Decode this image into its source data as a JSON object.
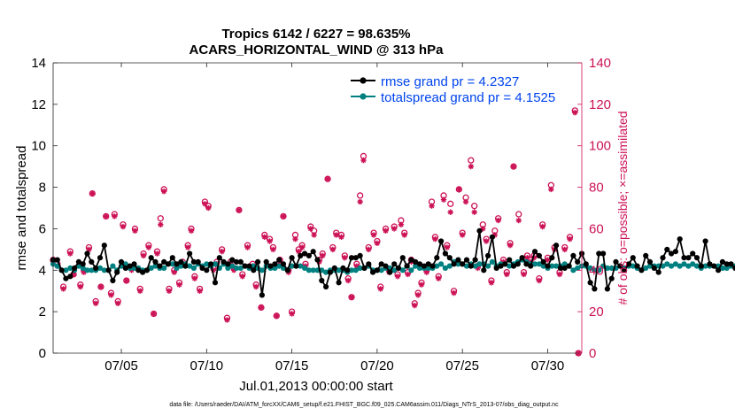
{
  "chart_data": {
    "type": "line",
    "title_line1": "Tropics 6142 / 6227 = 98.635%",
    "title_line2": "ACARS_HORIZONTAL_WIND @ 313 hPa",
    "xlabel": "Jul.01,2013 00:00:00 start",
    "ylabel_left": "rmse and totalspread",
    "ylabel_right": "# of obs: o=possible; ×=assimilated",
    "footnote": "data file: /Users/raeder/DAI/ATM_forcXX/CAM6_setup/f.e21.FHIST_BGC.f09_025.CAM6assim.011/Diags_NTrS_2013-07/obs_diag_output.nc",
    "xlim": [
      1.0,
      32.0
    ],
    "ylim_left": [
      0,
      14
    ],
    "ylim_right": [
      0,
      140
    ],
    "x_ticks": [
      5,
      10,
      15,
      20,
      25,
      30
    ],
    "x_tick_labels": [
      "07/05",
      "07/10",
      "07/15",
      "07/20",
      "07/25",
      "07/30"
    ],
    "y_ticks_left": [
      0,
      2,
      4,
      6,
      8,
      10,
      12,
      14
    ],
    "y_ticks_right": [
      0,
      20,
      40,
      60,
      80,
      100,
      120,
      140
    ],
    "legend": [
      {
        "label": "rmse grand pr = 4.2327"
      },
      {
        "label": "totalspread grand pr = 4.1525"
      }
    ],
    "colors": {
      "rmse": "#000000",
      "spread": "#008080",
      "obs": "#cc1155",
      "legend_text": "#0044ee"
    },
    "x_start": 1.0,
    "x_step": 0.25,
    "series": [
      {
        "name": "rmse",
        "values": [
          4.5,
          4.5,
          4.0,
          3.6,
          3.7,
          4.1,
          4.4,
          4.3,
          4.8,
          4.4,
          4.1,
          4.6,
          5.2,
          4.0,
          3.5,
          3.9,
          4.4,
          4.1,
          4.2,
          4.3,
          4.0,
          3.9,
          4.0,
          4.6,
          4.4,
          4.2,
          4.4,
          4.3,
          4.6,
          4.3,
          4.4,
          4.2,
          4.8,
          4.4,
          4.4,
          4.1,
          4.0,
          4.3,
          3.4,
          4.6,
          4.4,
          4.3,
          4.5,
          4.4,
          4.4,
          4.2,
          4.2,
          4.0,
          4.4,
          2.8,
          4.4,
          4.2,
          4.3,
          4.5,
          4.3,
          4.0,
          4.6,
          4.2,
          4.7,
          4.8,
          4.7,
          4.9,
          4.5,
          3.5,
          3.2,
          3.9,
          4.1,
          3.4,
          4.1,
          4.0,
          4.6,
          4.6,
          4.7,
          4.1,
          4.3,
          3.9,
          4.0,
          4.3,
          4.2,
          3.9,
          4.3,
          4.1,
          4.6,
          4.2,
          4.5,
          4.4,
          4.3,
          4.2,
          4.3,
          4.2,
          4.6,
          5.4,
          4.8,
          4.6,
          4.3,
          4.5,
          4.3,
          4.5,
          4.2,
          4.5,
          5.9,
          4.0,
          4.7,
          5.6,
          4.1,
          4.2,
          4.3,
          4.5,
          4.2,
          4.3,
          4.6,
          4.3,
          4.2,
          4.9,
          4.7,
          4.4,
          4.2,
          4.6,
          5.2,
          4.1,
          4.1,
          4.2,
          4.7,
          4.4,
          4.8,
          4.3,
          3.4,
          3.1,
          4.8,
          4.8,
          3.1,
          3.6,
          4.4,
          4.2,
          4.0,
          4.3,
          4.6,
          4.2,
          4.0,
          4.7,
          4.4,
          4.1,
          3.9,
          4.6,
          5.0,
          4.8,
          4.9,
          5.5,
          4.6,
          4.6,
          4.8,
          4.6,
          4.2,
          5.4,
          4.3,
          4.2,
          4.0,
          4.4,
          4.3,
          4.3,
          4.1,
          3.9,
          4.5,
          4.2,
          4.0,
          4.4,
          4.5,
          3.4,
          3.3,
          3.3,
          3.9,
          4.6,
          4.0,
          4.0,
          4.6,
          4.6,
          4.0,
          4.0,
          4.0,
          4.4,
          4.5,
          4.1,
          4.2,
          4.8,
          4.3,
          3.7,
          4.5,
          4.7,
          3.9
        ]
      },
      {
        "name": "totalspread",
        "values": [
          4.3,
          4.2,
          4.0,
          4.0,
          4.1,
          4.0,
          4.2,
          4.1,
          4.0,
          4.0,
          4.0,
          4.1,
          4.0,
          4.0,
          4.2,
          4.0,
          4.2,
          4.3,
          4.1,
          4.1,
          4.1,
          4.0,
          4.0,
          4.1,
          4.2,
          4.1,
          4.1,
          4.3,
          4.3,
          4.1,
          4.2,
          4.3,
          4.2,
          4.1,
          4.3,
          4.2,
          4.3,
          4.2,
          4.3,
          4.1,
          4.3,
          4.1,
          4.2,
          4.1,
          4.1,
          4.2,
          4.1,
          4.2,
          4.1,
          4.0,
          4.2,
          4.1,
          4.1,
          4.2,
          4.1,
          4.0,
          4.2,
          4.2,
          4.2,
          4.1,
          4.0,
          4.0,
          4.0,
          4.0,
          3.9,
          4.0,
          4.0,
          4.0,
          4.0,
          3.9,
          4.0,
          4.0,
          4.1,
          4.1,
          4.2,
          4.0,
          4.0,
          4.0,
          4.1,
          4.1,
          4.0,
          4.1,
          4.0,
          4.2,
          4.0,
          4.2,
          4.1,
          4.1,
          4.1,
          4.1,
          4.2,
          4.3,
          4.1,
          4.2,
          4.4,
          4.3,
          4.3,
          4.2,
          4.3,
          4.2,
          4.3,
          4.3,
          4.2,
          4.4,
          4.2,
          4.3,
          4.3,
          4.2,
          4.3,
          4.4,
          4.5,
          4.4,
          4.3,
          4.3,
          4.3,
          4.2,
          4.1,
          4.2,
          4.2,
          4.2,
          4.3,
          4.2,
          4.0,
          4.1,
          4.2,
          4.2,
          4.1,
          4.0,
          4.0,
          4.2,
          4.1,
          4.1,
          4.1,
          4.2,
          4.1,
          4.2,
          4.2,
          4.1,
          4.0,
          4.1,
          4.2,
          4.2,
          4.2,
          4.2,
          4.3,
          4.2,
          4.3,
          4.2,
          4.3,
          4.2,
          4.3,
          4.2,
          4.1,
          4.2,
          4.2,
          4.2,
          4.2,
          4.1,
          4.1,
          4.2,
          4.2,
          4.0,
          4.1,
          4.1,
          4.0,
          3.9,
          3.9,
          3.9,
          4.1,
          4.0,
          4.0,
          4.0,
          4.1,
          4.1,
          4.0,
          4.1,
          4.1,
          4.1,
          4.1,
          4.0,
          4.0,
          4.4,
          4.2,
          4.1,
          4.3,
          4.3,
          4.3
        ]
      }
    ],
    "obs_possible": [
      [
        1.0,
        45
      ],
      [
        1.25,
        43
      ],
      [
        1.6,
        32
      ],
      [
        2.0,
        49
      ],
      [
        2.2,
        38
      ],
      [
        2.6,
        33
      ],
      [
        2.8,
        40
      ],
      [
        3.1,
        51
      ],
      [
        3.3,
        77
      ],
      [
        3.5,
        25
      ],
      [
        3.8,
        32
      ],
      [
        4.1,
        66
      ],
      [
        4.4,
        29
      ],
      [
        4.6,
        67
      ],
      [
        4.8,
        25
      ],
      [
        5.1,
        62
      ],
      [
        5.3,
        35
      ],
      [
        5.6,
        41
      ],
      [
        5.8,
        60
      ],
      [
        6.1,
        31
      ],
      [
        6.3,
        48
      ],
      [
        6.6,
        52
      ],
      [
        6.9,
        19
      ],
      [
        7.1,
        49
      ],
      [
        7.3,
        65
      ],
      [
        7.5,
        79
      ],
      [
        7.8,
        31
      ],
      [
        8.1,
        40
      ],
      [
        8.4,
        34
      ],
      [
        8.6,
        44
      ],
      [
        8.9,
        52
      ],
      [
        9.1,
        60
      ],
      [
        9.3,
        37
      ],
      [
        9.6,
        31
      ],
      [
        9.9,
        73
      ],
      [
        10.1,
        71
      ],
      [
        10.4,
        41
      ],
      [
        10.6,
        44
      ],
      [
        10.9,
        50
      ],
      [
        11.2,
        17
      ],
      [
        11.4,
        44
      ],
      [
        11.6,
        41
      ],
      [
        11.9,
        69
      ],
      [
        12.1,
        38
      ],
      [
        12.4,
        52
      ],
      [
        12.7,
        43
      ],
      [
        12.9,
        33
      ],
      [
        13.2,
        22
      ],
      [
        13.4,
        57
      ],
      [
        13.7,
        55
      ],
      [
        13.9,
        51
      ],
      [
        14.1,
        18
      ],
      [
        14.3,
        45
      ],
      [
        14.5,
        66
      ],
      [
        14.8,
        40
      ],
      [
        15.0,
        20
      ],
      [
        15.2,
        57
      ],
      [
        15.4,
        50
      ],
      [
        15.6,
        52
      ],
      [
        15.8,
        43
      ],
      [
        16.1,
        61
      ],
      [
        16.3,
        59
      ],
      [
        16.6,
        45
      ],
      [
        16.8,
        48
      ],
      [
        17.1,
        84
      ],
      [
        17.4,
        51
      ],
      [
        17.6,
        58
      ],
      [
        17.9,
        57
      ],
      [
        18.1,
        47
      ],
      [
        18.3,
        36
      ],
      [
        18.5,
        27
      ],
      [
        18.8,
        43
      ],
      [
        19.0,
        76
      ],
      [
        19.2,
        95
      ],
      [
        19.5,
        51
      ],
      [
        19.8,
        58
      ],
      [
        20.0,
        54
      ],
      [
        20.2,
        32
      ],
      [
        20.5,
        60
      ],
      [
        20.7,
        40
      ],
      [
        21.0,
        61
      ],
      [
        21.2,
        38
      ],
      [
        21.4,
        64
      ],
      [
        21.6,
        58
      ],
      [
        21.8,
        39
      ],
      [
        22.0,
        45
      ],
      [
        22.2,
        24
      ],
      [
        22.4,
        29
      ],
      [
        22.6,
        34
      ],
      [
        22.9,
        40
      ],
      [
        23.2,
        73
      ],
      [
        23.4,
        56
      ],
      [
        23.6,
        37
      ],
      [
        23.9,
        76
      ],
      [
        24.1,
        52
      ],
      [
        24.3,
        72
      ],
      [
        24.5,
        30
      ],
      [
        24.8,
        79
      ],
      [
        25.0,
        58
      ],
      [
        25.2,
        75
      ],
      [
        25.5,
        93
      ],
      [
        25.7,
        71
      ],
      [
        25.9,
        42
      ],
      [
        26.2,
        62
      ],
      [
        26.4,
        55
      ],
      [
        26.7,
        35
      ],
      [
        26.9,
        59
      ],
      [
        27.1,
        65
      ],
      [
        27.4,
        45
      ],
      [
        27.6,
        39
      ],
      [
        27.8,
        53
      ],
      [
        28.0,
        90
      ],
      [
        28.3,
        67
      ],
      [
        28.6,
        39
      ],
      [
        28.8,
        47
      ],
      [
        29.0,
        45
      ],
      [
        29.2,
        47
      ],
      [
        29.5,
        36
      ],
      [
        29.7,
        62
      ],
      [
        30.0,
        46
      ],
      [
        30.2,
        81
      ],
      [
        30.4,
        51
      ],
      [
        30.7,
        39
      ],
      [
        31.0,
        51
      ],
      [
        31.3,
        56
      ],
      [
        31.6,
        117
      ],
      [
        31.8,
        0
      ]
    ],
    "obs_assimilated": [
      [
        1.0,
        44
      ],
      [
        1.25,
        42
      ],
      [
        1.6,
        31
      ],
      [
        2.0,
        48
      ],
      [
        2.2,
        38
      ],
      [
        2.6,
        32
      ],
      [
        2.8,
        39
      ],
      [
        3.1,
        50
      ],
      [
        3.3,
        77
      ],
      [
        3.5,
        24
      ],
      [
        3.8,
        32
      ],
      [
        4.1,
        66
      ],
      [
        4.4,
        28
      ],
      [
        4.6,
        66
      ],
      [
        4.8,
        24
      ],
      [
        5.1,
        61
      ],
      [
        5.3,
        35
      ],
      [
        5.6,
        40
      ],
      [
        5.8,
        59
      ],
      [
        6.1,
        30
      ],
      [
        6.3,
        47
      ],
      [
        6.6,
        51
      ],
      [
        6.9,
        19
      ],
      [
        7.1,
        48
      ],
      [
        7.3,
        62
      ],
      [
        7.5,
        78
      ],
      [
        7.8,
        30
      ],
      [
        8.1,
        39
      ],
      [
        8.4,
        33
      ],
      [
        8.6,
        43
      ],
      [
        8.9,
        51
      ],
      [
        9.1,
        59
      ],
      [
        9.3,
        36
      ],
      [
        9.6,
        30
      ],
      [
        9.9,
        72
      ],
      [
        10.1,
        70
      ],
      [
        10.4,
        40
      ],
      [
        10.6,
        43
      ],
      [
        10.9,
        49
      ],
      [
        11.2,
        16
      ],
      [
        11.4,
        43
      ],
      [
        11.6,
        40
      ],
      [
        11.9,
        69
      ],
      [
        12.1,
        37
      ],
      [
        12.4,
        51
      ],
      [
        12.7,
        42
      ],
      [
        12.9,
        32
      ],
      [
        13.2,
        22
      ],
      [
        13.4,
        56
      ],
      [
        13.7,
        54
      ],
      [
        13.9,
        50
      ],
      [
        14.1,
        18
      ],
      [
        14.3,
        44
      ],
      [
        14.5,
        66
      ],
      [
        14.8,
        39
      ],
      [
        15.0,
        19
      ],
      [
        15.2,
        55
      ],
      [
        15.4,
        49
      ],
      [
        15.6,
        51
      ],
      [
        15.8,
        42
      ],
      [
        16.1,
        60
      ],
      [
        16.3,
        57
      ],
      [
        16.6,
        44
      ],
      [
        16.8,
        47
      ],
      [
        17.1,
        84
      ],
      [
        17.4,
        50
      ],
      [
        17.6,
        57
      ],
      [
        17.9,
        56
      ],
      [
        18.1,
        46
      ],
      [
        18.3,
        35
      ],
      [
        18.5,
        27
      ],
      [
        18.8,
        42
      ],
      [
        19.0,
        73
      ],
      [
        19.2,
        93
      ],
      [
        19.5,
        50
      ],
      [
        19.8,
        57
      ],
      [
        20.0,
        53
      ],
      [
        20.2,
        31
      ],
      [
        20.5,
        59
      ],
      [
        20.7,
        39
      ],
      [
        21.0,
        60
      ],
      [
        21.2,
        37
      ],
      [
        21.4,
        62
      ],
      [
        21.6,
        57
      ],
      [
        21.8,
        38
      ],
      [
        22.0,
        44
      ],
      [
        22.2,
        23
      ],
      [
        22.4,
        28
      ],
      [
        22.6,
        33
      ],
      [
        22.9,
        39
      ],
      [
        23.2,
        71
      ],
      [
        23.4,
        55
      ],
      [
        23.6,
        36
      ],
      [
        23.9,
        74
      ],
      [
        24.1,
        51
      ],
      [
        24.3,
        68
      ],
      [
        24.5,
        29
      ],
      [
        24.8,
        79
      ],
      [
        25.0,
        57
      ],
      [
        25.2,
        73
      ],
      [
        25.5,
        90
      ],
      [
        25.7,
        68
      ],
      [
        25.9,
        41
      ],
      [
        26.2,
        60
      ],
      [
        26.4,
        54
      ],
      [
        26.7,
        34
      ],
      [
        26.9,
        57
      ],
      [
        27.1,
        64
      ],
      [
        27.4,
        44
      ],
      [
        27.6,
        38
      ],
      [
        27.8,
        52
      ],
      [
        28.0,
        90
      ],
      [
        28.3,
        64
      ],
      [
        28.6,
        38
      ],
      [
        28.8,
        46
      ],
      [
        29.0,
        44
      ],
      [
        29.2,
        46
      ],
      [
        29.5,
        35
      ],
      [
        29.7,
        61
      ],
      [
        30.0,
        45
      ],
      [
        30.2,
        79
      ],
      [
        30.4,
        50
      ],
      [
        30.7,
        38
      ],
      [
        31.0,
        50
      ],
      [
        31.3,
        55
      ],
      [
        31.6,
        116
      ],
      [
        31.8,
        0
      ]
    ]
  }
}
